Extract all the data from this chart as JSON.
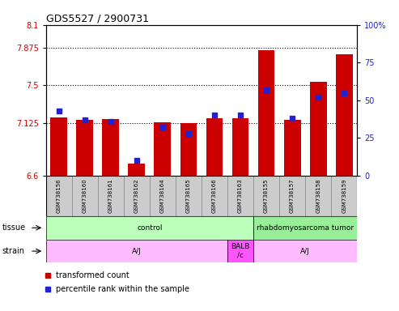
{
  "title": "GDS5527 / 2900731",
  "samples": [
    "GSM738156",
    "GSM738160",
    "GSM738161",
    "GSM738162",
    "GSM738164",
    "GSM738165",
    "GSM738166",
    "GSM738163",
    "GSM738155",
    "GSM738157",
    "GSM738158",
    "GSM738159"
  ],
  "red_values": [
    7.18,
    7.155,
    7.16,
    6.72,
    7.13,
    7.12,
    7.17,
    7.17,
    7.85,
    7.155,
    7.53,
    7.81
  ],
  "blue_values_pct": [
    43,
    37,
    36,
    10,
    32,
    28,
    40,
    40,
    57,
    38,
    52,
    55
  ],
  "ylim_left": [
    6.6,
    8.1
  ],
  "ylim_right": [
    0,
    100
  ],
  "yticks_left": [
    6.6,
    7.125,
    7.5,
    7.875,
    8.1
  ],
  "yticks_right": [
    0,
    25,
    50,
    75,
    100
  ],
  "ytick_labels_left": [
    "6.6",
    "7.125",
    "7.5",
    "7.875",
    "8.1"
  ],
  "ytick_labels_right": [
    "0",
    "25",
    "50",
    "75",
    "100%"
  ],
  "hlines": [
    7.125,
    7.5,
    7.875
  ],
  "bar_color": "#cc0000",
  "dot_color": "#2222cc",
  "bar_bottom": 6.6,
  "tissue_info": [
    {
      "label": "control",
      "start": 0,
      "end": 7,
      "color": "#bbffbb"
    },
    {
      "label": "rhabdomyosarcoma tumor",
      "start": 8,
      "end": 11,
      "color": "#99ee99"
    }
  ],
  "strain_info": [
    {
      "label": "A/J",
      "start": 0,
      "end": 6,
      "color": "#ffbbff"
    },
    {
      "label": "BALB\n/c",
      "start": 7,
      "end": 7,
      "color": "#ff55ff"
    },
    {
      "label": "A/J",
      "start": 8,
      "end": 11,
      "color": "#ffbbff"
    }
  ],
  "tissue_row_label": "tissue",
  "strain_row_label": "strain",
  "legend_red": "transformed count",
  "legend_blue": "percentile rank within the sample",
  "tick_label_color_left": "#cc0000",
  "tick_label_color_right": "#2222cc",
  "sample_box_color": "#cccccc"
}
